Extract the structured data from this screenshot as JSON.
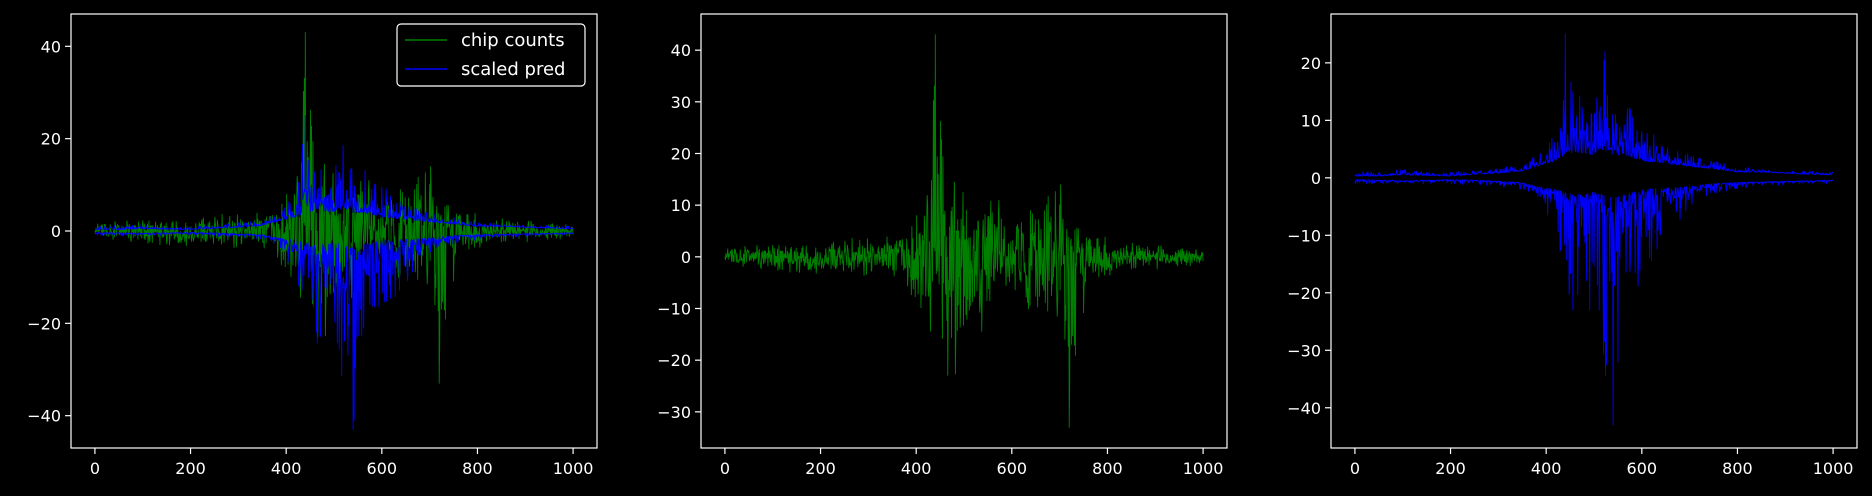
{
  "chart_data": [
    {
      "type": "line",
      "title": "",
      "xlabel": "",
      "ylabel": "",
      "xlim": [
        -50,
        1050
      ],
      "ylim": [
        -47,
        47
      ],
      "xticks": [
        0,
        200,
        400,
        600,
        800,
        1000
      ],
      "yticks": [
        -40,
        -20,
        0,
        20,
        40
      ],
      "grid": false,
      "legend": {
        "placement": "upper-right",
        "entries": [
          "chip counts",
          "scaled pred"
        ]
      },
      "series": [
        {
          "name": "chip counts",
          "color": "#008000",
          "style": "dense-signal",
          "points_x": [
            0,
            50,
            100,
            150,
            200,
            250,
            300,
            350,
            380,
            420,
            440,
            460,
            500,
            540,
            600,
            650,
            690,
            700,
            710,
            720,
            760,
            800,
            850,
            900,
            950,
            1000
          ],
          "upper": [
            1.5,
            2.5,
            3.0,
            3.0,
            4.0,
            3.5,
            4.0,
            6.0,
            7.0,
            14.0,
            43.0,
            27.0,
            15.0,
            13.0,
            10.0,
            12.0,
            20.0,
            30.0,
            12.0,
            8.0,
            5.0,
            4.0,
            3.0,
            2.5,
            2.0,
            1.5
          ],
          "lower": [
            -1.5,
            -2.5,
            -4.0,
            -4.0,
            -3.5,
            -3.5,
            -4.0,
            -6.0,
            -9.0,
            -15.0,
            -20.0,
            -28.0,
            -24.0,
            -14.0,
            -10.0,
            -12.0,
            -15.0,
            -18.0,
            -28.0,
            -33.0,
            -8.0,
            -5.0,
            -3.5,
            -3.0,
            -2.5,
            -1.5
          ]
        },
        {
          "name": "scaled pred",
          "color": "#0000ff",
          "style": "two-bands",
          "points_x": [
            0,
            50,
            100,
            150,
            200,
            250,
            300,
            350,
            380,
            420,
            440,
            460,
            500,
            520,
            540,
            560,
            600,
            650,
            700,
            750,
            800,
            850,
            900,
            950,
            1000
          ],
          "upper": [
            1.0,
            1.2,
            1.5,
            1.0,
            1.0,
            1.3,
            1.8,
            2.5,
            4.0,
            8.0,
            25.0,
            16.0,
            12.0,
            24.0,
            12.0,
            15.0,
            10.0,
            6.0,
            4.0,
            3.0,
            2.0,
            1.5,
            1.2,
            1.2,
            1.0
          ],
          "lower": [
            -1.0,
            -1.2,
            -1.0,
            -1.0,
            -1.2,
            -1.2,
            -1.5,
            -2.0,
            -3.0,
            -10.0,
            -18.0,
            -26.0,
            -23.0,
            -34.0,
            -43.0,
            -26.0,
            -18.0,
            -12.0,
            -5.0,
            -3.0,
            -2.0,
            -1.5,
            -1.2,
            -1.0,
            -1.0
          ],
          "band_upper_center": [
            0.3,
            0.3,
            0.5,
            0.4,
            0.3,
            0.6,
            0.8,
            1.2,
            2.0,
            3.0,
            4.0,
            4.5,
            4.0,
            5.0,
            4.0,
            4.0,
            3.0,
            2.5,
            2.0,
            1.5,
            1.0,
            1.0,
            0.8,
            0.6,
            0.5
          ],
          "band_lower_center": [
            -0.3,
            -0.4,
            -0.5,
            -0.4,
            -0.3,
            -0.4,
            -0.6,
            -0.8,
            -1.5,
            -2.0,
            -2.5,
            -3.0,
            -2.5,
            -3.0,
            -3.5,
            -3.0,
            -2.0,
            -1.8,
            -1.5,
            -1.0,
            -0.8,
            -0.7,
            -0.6,
            -0.5,
            -0.4
          ]
        }
      ]
    },
    {
      "type": "line",
      "title": "",
      "xlabel": "",
      "ylabel": "",
      "xlim": [
        -50,
        1050
      ],
      "ylim": [
        -37,
        47
      ],
      "xticks": [
        0,
        200,
        400,
        600,
        800,
        1000
      ],
      "yticks": [
        -30,
        -20,
        -10,
        0,
        10,
        20,
        30,
        40
      ],
      "grid": false,
      "series": [
        {
          "color": "#008000",
          "style": "dense-signal",
          "points_x": [
            0,
            50,
            100,
            150,
            200,
            250,
            300,
            350,
            380,
            420,
            440,
            460,
            500,
            540,
            600,
            650,
            690,
            700,
            710,
            720,
            760,
            800,
            850,
            900,
            950,
            1000
          ],
          "upper": [
            1.5,
            2.5,
            3.0,
            3.0,
            4.0,
            3.5,
            4.0,
            6.0,
            7.0,
            14.0,
            43.0,
            27.0,
            15.0,
            13.0,
            10.0,
            12.0,
            20.0,
            30.0,
            12.0,
            8.0,
            5.0,
            4.0,
            3.0,
            2.5,
            2.0,
            1.5
          ],
          "lower": [
            -1.5,
            -2.5,
            -4.0,
            -4.0,
            -3.5,
            -3.5,
            -4.0,
            -6.0,
            -9.0,
            -15.0,
            -20.0,
            -28.0,
            -24.0,
            -14.0,
            -10.0,
            -12.0,
            -15.0,
            -18.0,
            -28.0,
            -33.0,
            -8.0,
            -5.0,
            -3.5,
            -3.0,
            -2.5,
            -1.5
          ]
        }
      ]
    },
    {
      "type": "line",
      "title": "",
      "xlabel": "",
      "ylabel": "",
      "xlim": [
        -50,
        1050
      ],
      "ylim": [
        -47,
        28.5
      ],
      "xticks": [
        0,
        200,
        400,
        600,
        800,
        1000
      ],
      "yticks": [
        -40,
        -30,
        -20,
        -10,
        0,
        10,
        20
      ],
      "grid": false,
      "series": [
        {
          "color": "#0000ff",
          "style": "two-bands",
          "points_x": [
            0,
            50,
            100,
            150,
            200,
            250,
            300,
            350,
            380,
            420,
            440,
            460,
            500,
            520,
            540,
            560,
            600,
            650,
            700,
            750,
            800,
            850,
            900,
            950,
            1000
          ],
          "upper": [
            1.0,
            1.2,
            1.5,
            1.0,
            1.0,
            1.3,
            1.8,
            2.5,
            4.0,
            8.0,
            25.0,
            16.0,
            12.0,
            24.0,
            12.0,
            15.0,
            10.0,
            6.0,
            4.0,
            3.0,
            2.0,
            1.5,
            1.2,
            1.2,
            1.0
          ],
          "lower": [
            -1.0,
            -1.2,
            -1.0,
            -1.0,
            -1.2,
            -1.2,
            -1.5,
            -2.0,
            -3.0,
            -10.0,
            -18.0,
            -26.0,
            -23.0,
            -34.0,
            -43.0,
            -26.0,
            -18.0,
            -12.0,
            -5.0,
            -3.0,
            -2.0,
            -1.5,
            -1.2,
            -1.0,
            -1.0
          ],
          "band_upper_center": [
            0.3,
            0.3,
            0.5,
            0.4,
            0.3,
            0.6,
            0.8,
            1.2,
            2.0,
            3.0,
            4.0,
            4.5,
            4.0,
            5.0,
            4.0,
            4.0,
            3.0,
            2.5,
            2.0,
            1.5,
            1.0,
            1.0,
            0.8,
            0.6,
            0.5
          ],
          "band_lower_center": [
            -0.3,
            -0.4,
            -0.5,
            -0.4,
            -0.3,
            -0.4,
            -0.6,
            -0.8,
            -1.5,
            -2.0,
            -2.5,
            -3.0,
            -2.5,
            -3.0,
            -3.5,
            -3.0,
            -2.0,
            -1.8,
            -1.5,
            -1.0,
            -0.8,
            -0.7,
            -0.6,
            -0.5,
            -0.4
          ]
        }
      ]
    }
  ]
}
